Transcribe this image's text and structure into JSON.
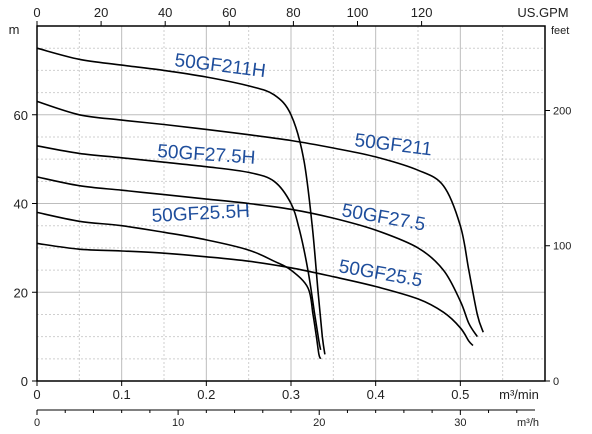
{
  "chart_data": {
    "type": "line",
    "units": {
      "y_left": "m",
      "y_right": "feet",
      "x_top": "US.GPM",
      "x_bottom": "m³/min",
      "x_bottom2": "m³/h"
    },
    "x_main": {
      "range": [
        0,
        0.6
      ],
      "ticks": [
        0,
        0.1,
        0.2,
        0.3,
        0.4,
        0.5
      ],
      "tick_labels": [
        "0",
        "0.1",
        "0.2",
        "0.3",
        "0.4",
        "0.5"
      ]
    },
    "x_top": {
      "ticks": [
        0,
        20,
        40,
        60,
        80,
        100,
        120
      ],
      "tick_labels": [
        "0",
        "20",
        "40",
        "60",
        "80",
        "100",
        "120"
      ]
    },
    "x_bottom2": {
      "ticks": [
        0,
        10,
        20,
        30
      ],
      "tick_labels": [
        "0",
        "10",
        "20",
        "30"
      ]
    },
    "y_left": {
      "range": [
        0,
        80
      ],
      "ticks": [
        0,
        20,
        40,
        60
      ],
      "tick_labels": [
        "0",
        "20",
        "40",
        "60"
      ]
    },
    "y_right": {
      "ticks": [
        0,
        100,
        200
      ],
      "tick_labels": [
        "0",
        "100",
        "200"
      ]
    },
    "grid": true,
    "series": [
      {
        "name": "50GF211H",
        "label": "50GF211H",
        "points": [
          [
            0,
            75
          ],
          [
            0.05,
            72.5
          ],
          [
            0.1,
            71.2
          ],
          [
            0.15,
            70
          ],
          [
            0.2,
            68.5
          ],
          [
            0.25,
            66.5
          ],
          [
            0.28,
            64.5
          ],
          [
            0.3,
            60
          ],
          [
            0.315,
            50
          ],
          [
            0.325,
            35
          ],
          [
            0.332,
            20
          ],
          [
            0.337,
            10
          ],
          [
            0.34,
            6
          ]
        ]
      },
      {
        "name": "50GF211",
        "label": "50GF211",
        "points": [
          [
            0,
            63
          ],
          [
            0.05,
            60
          ],
          [
            0.1,
            58.8
          ],
          [
            0.15,
            57.8
          ],
          [
            0.2,
            56.7
          ],
          [
            0.25,
            55.5
          ],
          [
            0.3,
            54.2
          ],
          [
            0.35,
            52.5
          ],
          [
            0.4,
            50.5
          ],
          [
            0.45,
            47.5
          ],
          [
            0.48,
            44
          ],
          [
            0.5,
            35
          ],
          [
            0.51,
            25
          ],
          [
            0.52,
            15
          ],
          [
            0.527,
            11
          ]
        ]
      },
      {
        "name": "50GF27.5H",
        "label": "50GF27.5H",
        "points": [
          [
            0,
            53
          ],
          [
            0.05,
            51.3
          ],
          [
            0.1,
            50.3
          ],
          [
            0.15,
            49.3
          ],
          [
            0.2,
            48.3
          ],
          [
            0.25,
            47
          ],
          [
            0.28,
            45
          ],
          [
            0.3,
            40
          ],
          [
            0.31,
            34
          ],
          [
            0.32,
            25
          ],
          [
            0.328,
            15
          ],
          [
            0.333,
            9
          ],
          [
            0.335,
            7
          ]
        ]
      },
      {
        "name": "50GF27.5",
        "label": "50GF27.5",
        "points": [
          [
            0,
            46
          ],
          [
            0.05,
            44
          ],
          [
            0.1,
            43
          ],
          [
            0.15,
            42
          ],
          [
            0.2,
            41
          ],
          [
            0.25,
            40
          ],
          [
            0.3,
            38.7
          ],
          [
            0.35,
            36.7
          ],
          [
            0.4,
            34
          ],
          [
            0.45,
            30
          ],
          [
            0.48,
            25
          ],
          [
            0.5,
            18
          ],
          [
            0.51,
            13
          ],
          [
            0.52,
            10
          ]
        ]
      },
      {
        "name": "50GF25.5H",
        "label": "50GF25.5H",
        "points": [
          [
            0,
            38
          ],
          [
            0.05,
            36
          ],
          [
            0.1,
            35
          ],
          [
            0.15,
            33.5
          ],
          [
            0.2,
            31.8
          ],
          [
            0.25,
            29.5
          ],
          [
            0.28,
            27
          ],
          [
            0.3,
            25
          ],
          [
            0.32,
            21
          ],
          [
            0.326,
            15
          ],
          [
            0.33,
            10
          ],
          [
            0.333,
            6
          ],
          [
            0.335,
            5
          ]
        ]
      },
      {
        "name": "50GF25.5",
        "label": "50GF25.5",
        "points": [
          [
            0,
            31
          ],
          [
            0.05,
            29.7
          ],
          [
            0.1,
            29.3
          ],
          [
            0.15,
            28.8
          ],
          [
            0.2,
            28
          ],
          [
            0.25,
            27
          ],
          [
            0.3,
            25.5
          ],
          [
            0.35,
            23.5
          ],
          [
            0.4,
            21.3
          ],
          [
            0.45,
            18.5
          ],
          [
            0.48,
            15.5
          ],
          [
            0.5,
            12
          ],
          [
            0.51,
            9
          ],
          [
            0.515,
            8
          ]
        ]
      }
    ]
  }
}
